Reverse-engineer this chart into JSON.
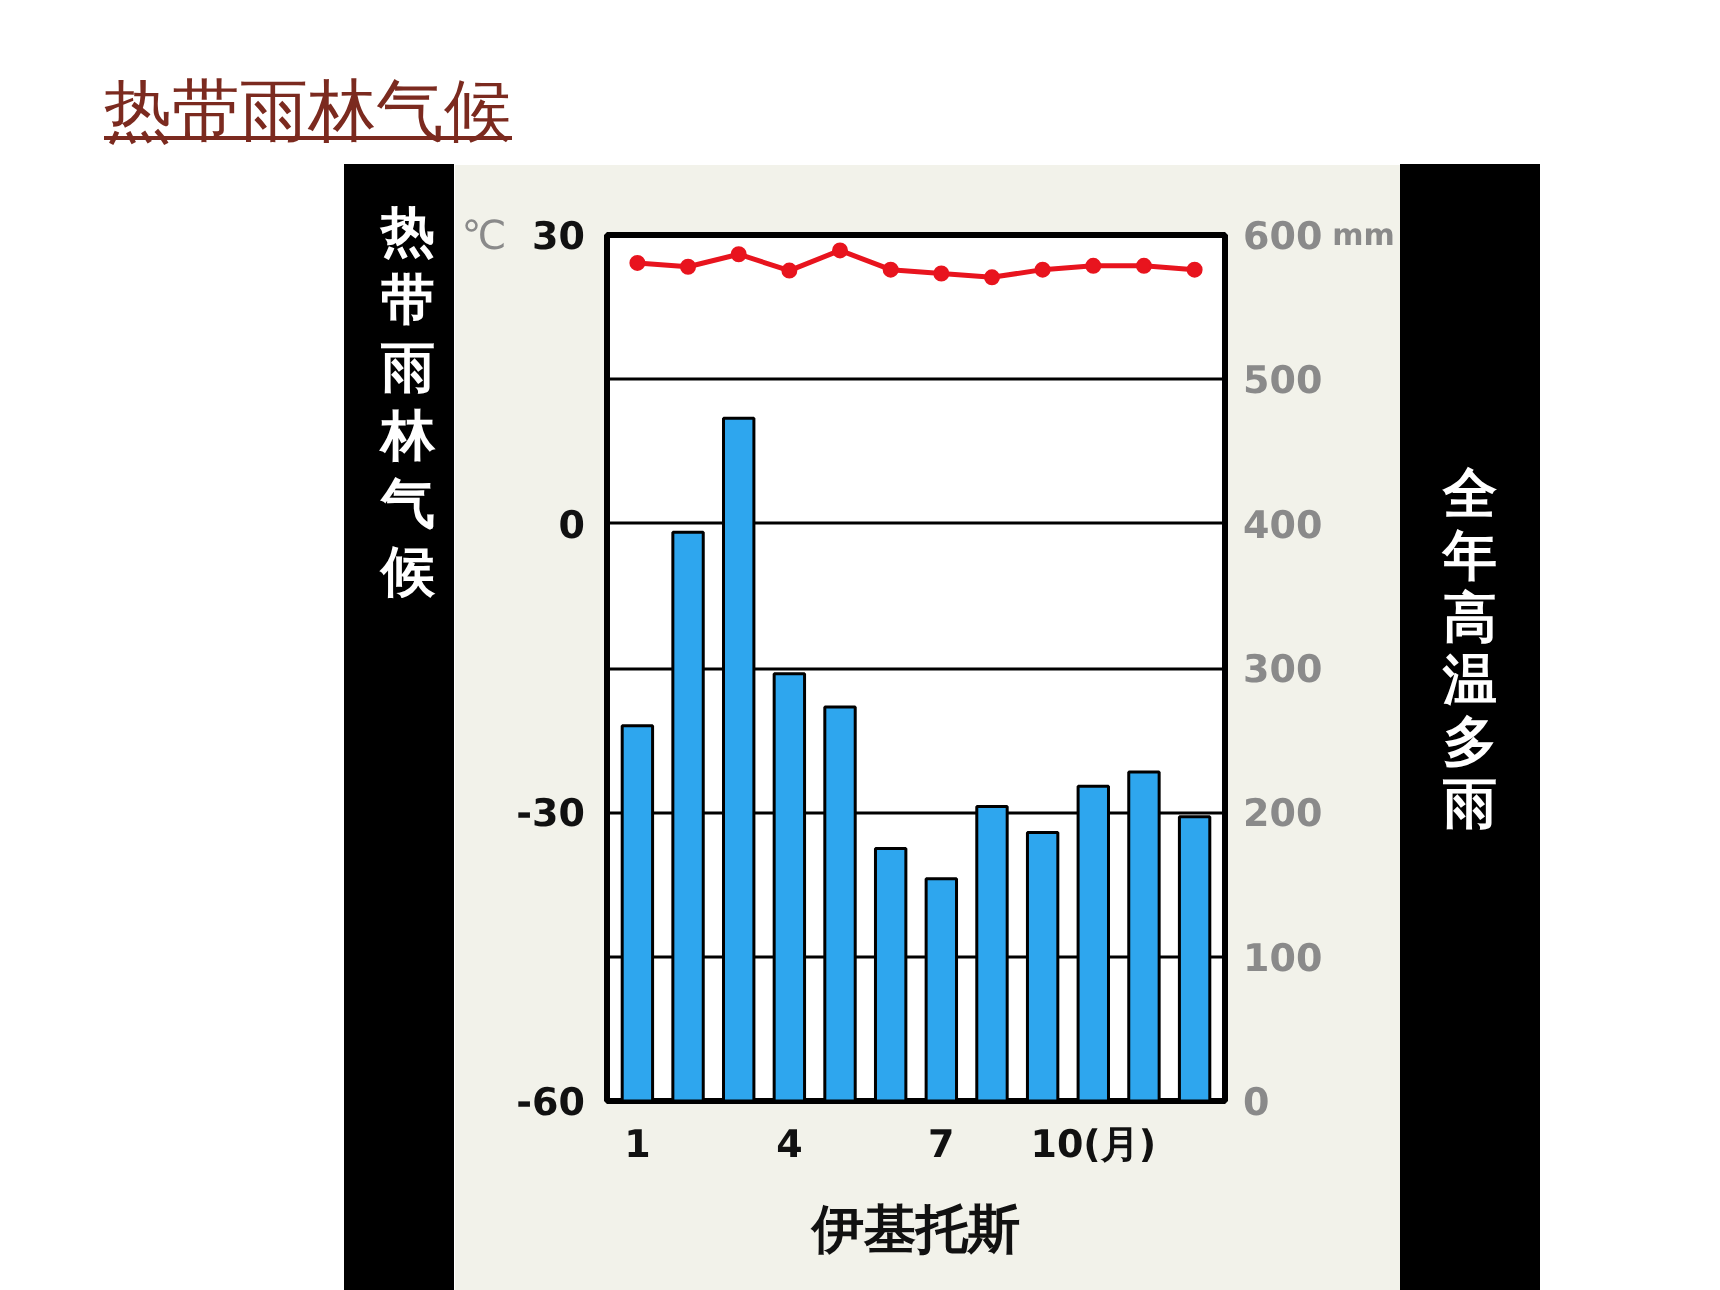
{
  "chart_data": {
    "type": "bar",
    "title": "热带雨林气候",
    "xlabel": "伊基托斯",
    "ylabel": "℃",
    "y2label": "mm",
    "annotations": [
      "热带雨林气候",
      "全年高温多雨"
    ],
    "x": [
      1,
      2,
      3,
      4,
      5,
      6,
      7,
      8,
      9,
      10,
      11,
      12
    ],
    "xlim": [
      0.4,
      12.6
    ],
    "xticks": [
      1,
      4,
      7,
      {
        "value": 10,
        "label": "10(月)"
      }
    ],
    "ylim": [
      -60,
      30
    ],
    "yticks": [
      -60,
      {
        "value": -45,
        "label": null
      },
      -30,
      {
        "value": -15,
        "label": null
      },
      0,
      {
        "value": 15,
        "label": null
      },
      30
    ],
    "y2lim": [
      0,
      600
    ],
    "y2ticks": [
      0,
      100,
      200,
      300,
      400,
      500,
      600
    ],
    "series": [
      {
        "axis": "y2",
        "color": "#2ea6ee",
        "values": [
          260,
          394,
          473,
          296,
          273,
          175,
          154,
          204,
          186,
          218,
          228,
          197
        ]
      },
      {
        "type": "line",
        "color": "#e8141e",
        "marker": "circle",
        "values": [
          27.1,
          26.7,
          28.0,
          26.3,
          28.4,
          26.4,
          26.0,
          25.6,
          26.4,
          26.8,
          26.8,
          26.4
        ]
      }
    ],
    "grid": "y"
  }
}
